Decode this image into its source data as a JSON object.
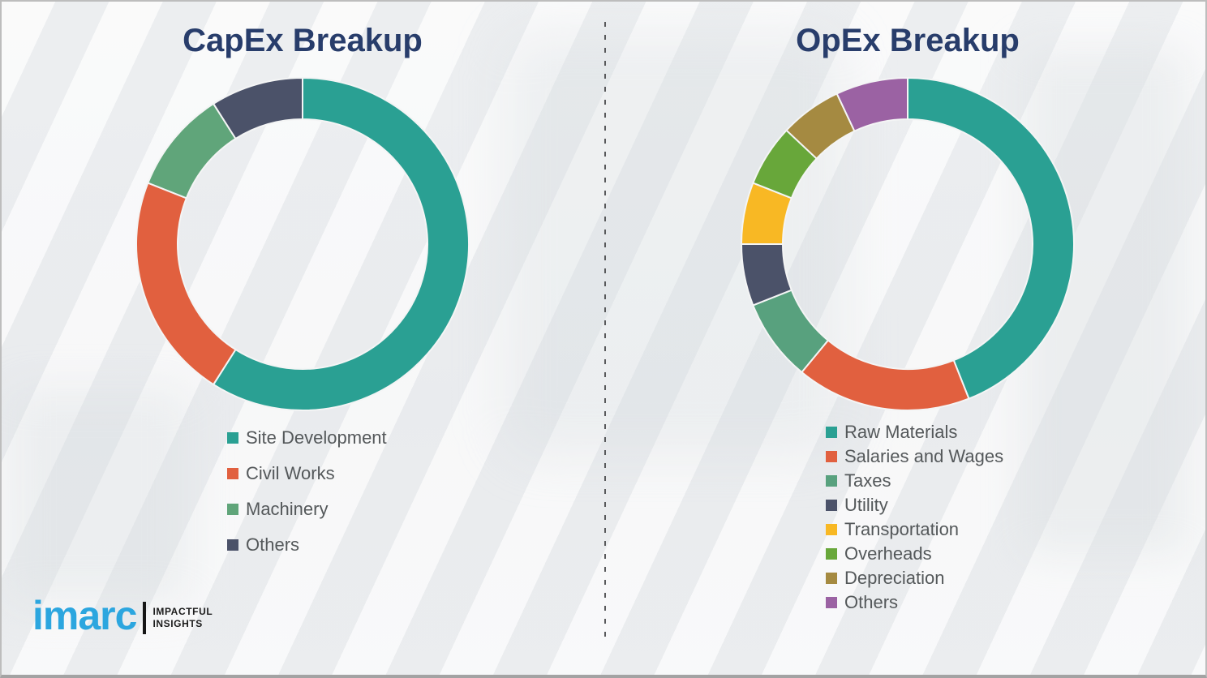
{
  "logo": {
    "brand": "imarc",
    "tagline_line1": "IMPACTFUL",
    "tagline_line2": "INSIGHTS"
  },
  "chart_data": [
    {
      "type": "pie",
      "subtype": "donut",
      "title": "CapEx Breakup",
      "legend_position": "bottom-left",
      "start_angle_deg": 0,
      "direction": "clockwise",
      "series": [
        {
          "label": "Site Development",
          "value": 59,
          "color": "#2aa093"
        },
        {
          "label": "Civil Works",
          "value": 22,
          "color": "#e1603f"
        },
        {
          "label": "Machinery",
          "value": 10,
          "color": "#60a57a"
        },
        {
          "label": "Others",
          "value": 9,
          "color": "#4b5269"
        }
      ]
    },
    {
      "type": "pie",
      "subtype": "donut",
      "title": "OpEx Breakup",
      "legend_position": "bottom-left",
      "start_angle_deg": 0,
      "direction": "clockwise",
      "series": [
        {
          "label": "Raw Materials",
          "value": 44,
          "color": "#2aa093"
        },
        {
          "label": "Salaries and Wages",
          "value": 17,
          "color": "#e1603f"
        },
        {
          "label": "Taxes",
          "value": 8,
          "color": "#58a17e"
        },
        {
          "label": "Utility",
          "value": 6,
          "color": "#4b5269"
        },
        {
          "label": "Transportation",
          "value": 6,
          "color": "#f8b824"
        },
        {
          "label": "Overheads",
          "value": 6,
          "color": "#68a73a"
        },
        {
          "label": "Depreciation",
          "value": 6,
          "color": "#a58a41"
        },
        {
          "label": "Others",
          "value": 7,
          "color": "#9b62a3"
        }
      ]
    }
  ]
}
